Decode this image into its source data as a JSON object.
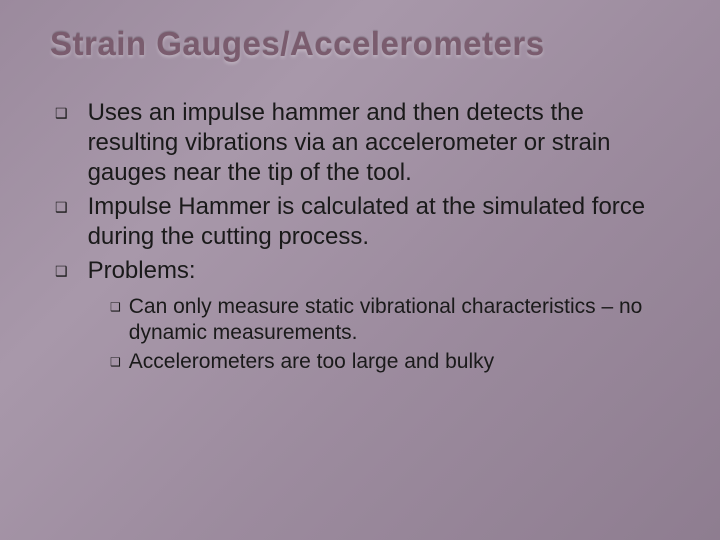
{
  "slide": {
    "title": "Strain Gauges/Accelerometers",
    "background_gradient": [
      "#9b8a9d",
      "#a898aa",
      "#9c8b9e",
      "#8e7d90"
    ],
    "title_color": "#7a5c6e",
    "text_color": "#1a1a1a",
    "title_fontsize": 33,
    "body_fontsize": 24,
    "sub_fontsize": 21,
    "bullets": [
      {
        "text": "Uses an impulse hammer and then detects the resulting vibrations via an accelerometer or strain gauges near the tip of the tool."
      },
      {
        "text": "Impulse Hammer is calculated at the simulated force during the cutting process."
      },
      {
        "text": "Problems:",
        "sub": [
          {
            "text": "Can only measure static vibrational characteristics – no dynamic measurements."
          },
          {
            "text": "Accelerometers are too large and bulky"
          }
        ]
      }
    ]
  }
}
